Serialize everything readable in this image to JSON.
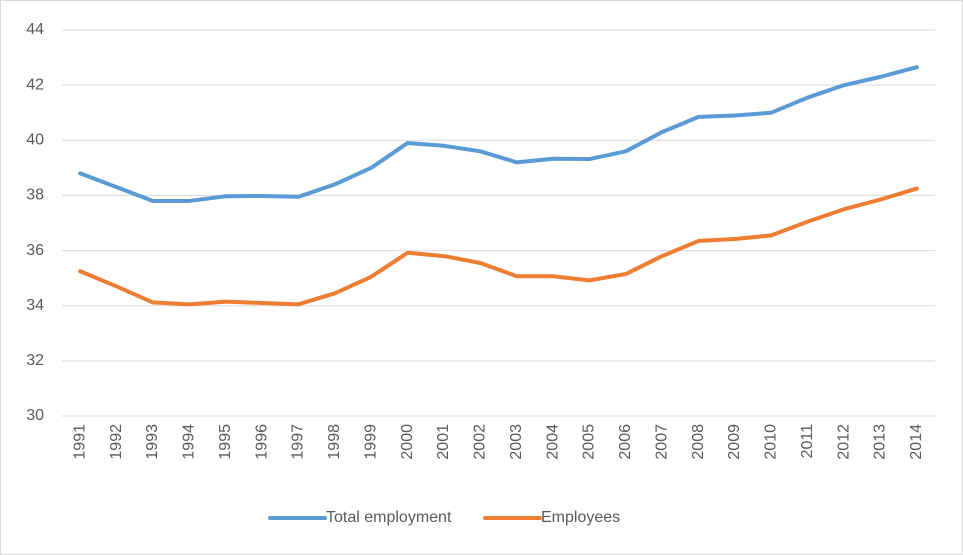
{
  "chart_data": {
    "type": "line",
    "categories": [
      "1991",
      "1992",
      "1993",
      "1994",
      "1995",
      "1996",
      "1997",
      "1998",
      "1999",
      "2000",
      "2001",
      "2002",
      "2003",
      "2004",
      "2005",
      "2006",
      "2007",
      "2008",
      "2009",
      "2010",
      "2011",
      "2012",
      "2013",
      "2014"
    ],
    "series": [
      {
        "name": "Total employment",
        "color": "#5b9bd5",
        "values": [
          38.8,
          38.3,
          37.8,
          37.8,
          37.97,
          37.98,
          37.95,
          38.4,
          39.0,
          39.9,
          39.8,
          39.6,
          39.2,
          39.33,
          39.32,
          39.6,
          40.3,
          40.85,
          40.9,
          41.0,
          41.55,
          42.0,
          42.3,
          42.65
        ]
      },
      {
        "name": "Employees",
        "color": "#ed7d31",
        "values": [
          35.25,
          34.7,
          34.12,
          34.05,
          34.15,
          34.1,
          34.05,
          34.45,
          35.05,
          35.92,
          35.8,
          35.55,
          35.07,
          35.07,
          34.92,
          35.15,
          35.8,
          36.35,
          36.42,
          36.55,
          37.05,
          37.5,
          37.85,
          38.25
        ]
      }
    ],
    "ylim": [
      30,
      44
    ],
    "yticks": [
      30,
      32,
      34,
      36,
      38,
      40,
      42,
      44
    ],
    "grid": true,
    "legend": "bottom"
  }
}
